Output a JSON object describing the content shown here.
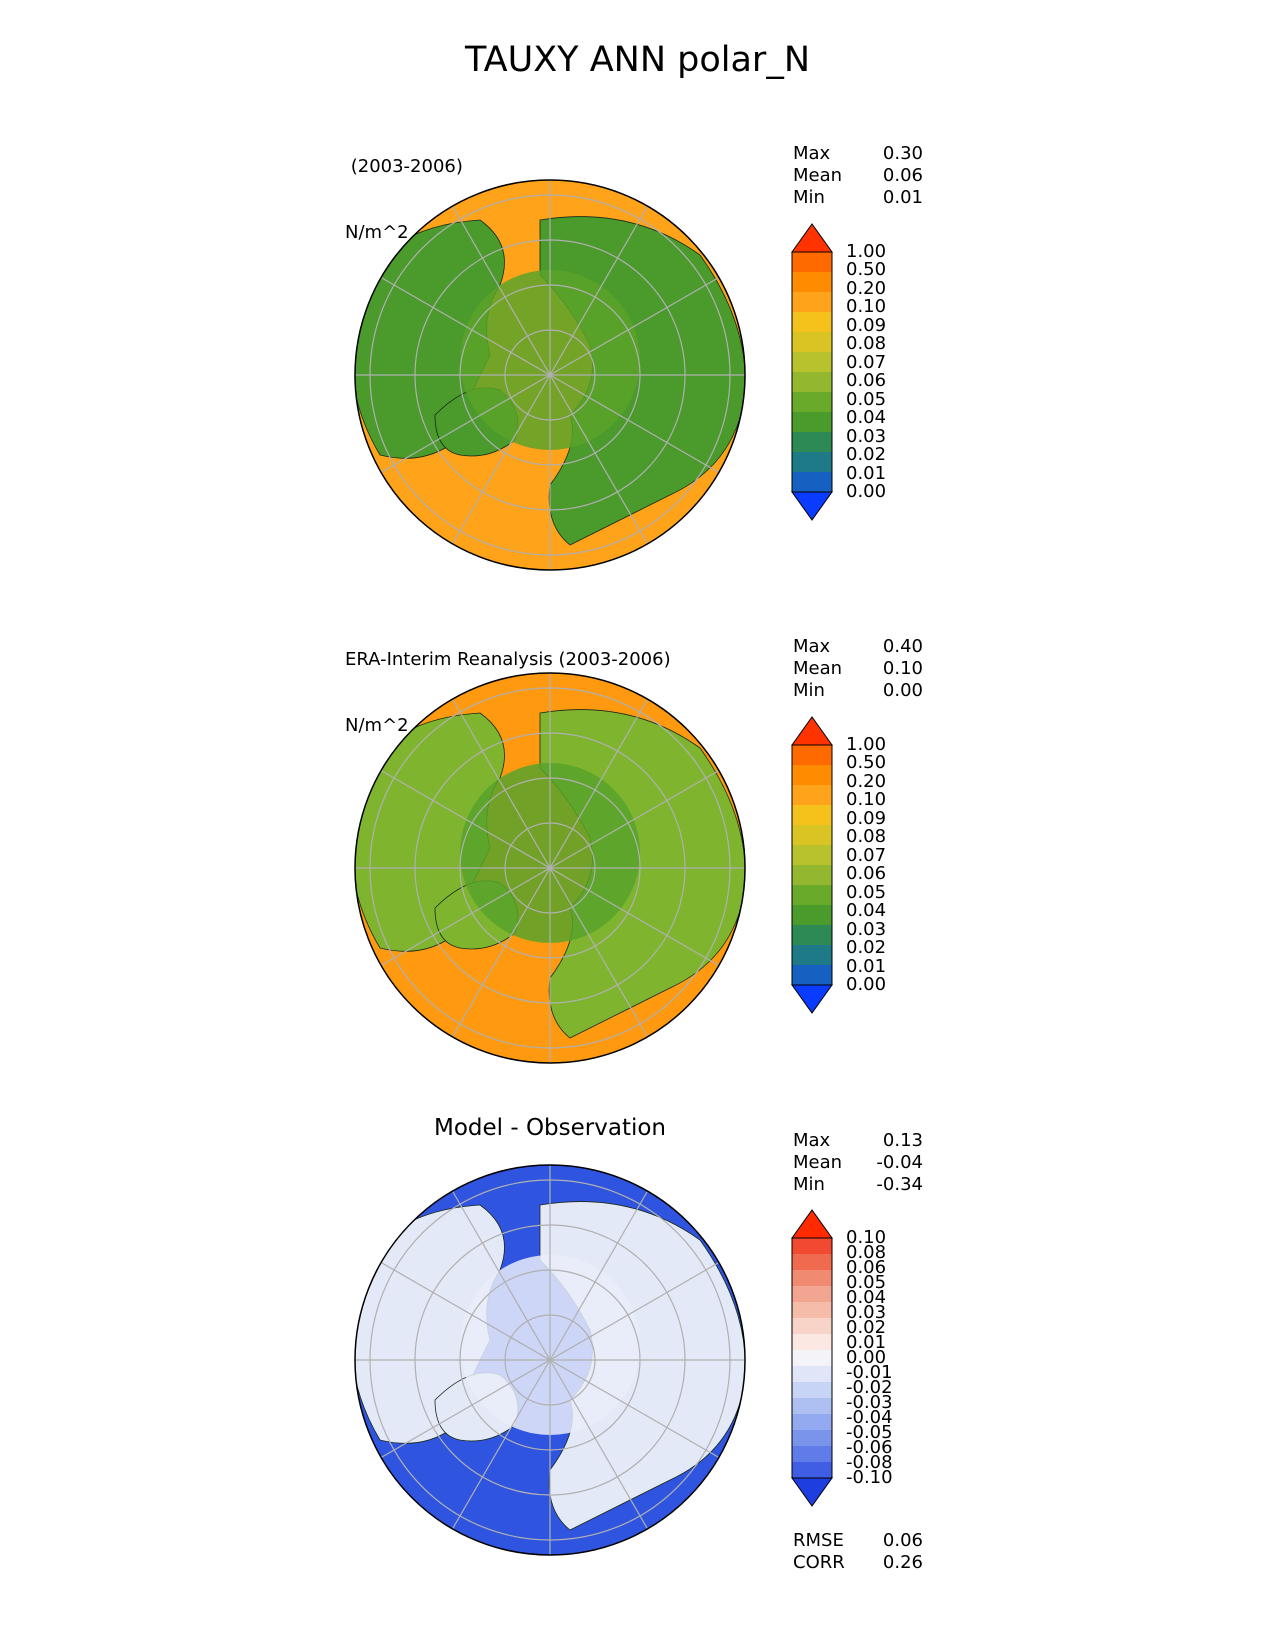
{
  "title": "TAUXY ANN polar_N",
  "panels": [
    {
      "label_line1": " (2003-2006)",
      "label_line2": "N/m^2",
      "center_title": "",
      "stats": [
        {
          "name": "Max",
          "value": "0.30"
        },
        {
          "name": "Mean",
          "value": "0.06"
        },
        {
          "name": "Min",
          "value": "0.01"
        }
      ],
      "colorbar_ticks": [
        "1.00",
        "0.50",
        "0.20",
        "0.10",
        "0.09",
        "0.08",
        "0.07",
        "0.06",
        "0.05",
        "0.04",
        "0.03",
        "0.02",
        "0.01",
        "0.00"
      ],
      "colors": [
        "#ff3300",
        "#ff6a00",
        "#ff8c00",
        "#ffa31a",
        "#f5c21b",
        "#d9c424",
        "#b8c22c",
        "#93b830",
        "#6aaa2a",
        "#4a9a2c",
        "#2e8a55",
        "#1f7a88",
        "#1560c0",
        "#0a3cff"
      ],
      "ocean_color": "#ffa31a",
      "land_color": "#4a9a2c",
      "arctic_color": "#5aa32a"
    },
    {
      "label_line1": "ERA-Interim Reanalysis (2003-2006)",
      "label_line2": "N/m^2",
      "center_title": "",
      "stats": [
        {
          "name": "Max",
          "value": "0.40"
        },
        {
          "name": "Mean",
          "value": "0.10"
        },
        {
          "name": "Min",
          "value": "0.00"
        }
      ],
      "colorbar_ticks": [
        "1.00",
        "0.50",
        "0.20",
        "0.10",
        "0.09",
        "0.08",
        "0.07",
        "0.06",
        "0.05",
        "0.04",
        "0.03",
        "0.02",
        "0.01",
        "0.00"
      ],
      "colors": [
        "#ff3300",
        "#ff6a00",
        "#ff8c00",
        "#ffa31a",
        "#f5c21b",
        "#d9c424",
        "#b8c22c",
        "#93b830",
        "#6aaa2a",
        "#4a9a2c",
        "#2e8a55",
        "#1f7a88",
        "#1560c0",
        "#0a3cff"
      ],
      "ocean_color": "#ff9a10",
      "land_color": "#7fb52e",
      "arctic_color": "#58a22a"
    },
    {
      "label_line1": "",
      "label_line2": "",
      "center_title": "Model - Observation",
      "stats": [
        {
          "name": "Max",
          "value": "0.13"
        },
        {
          "name": "Mean",
          "value": "-0.04"
        },
        {
          "name": "Min",
          "value": "-0.34"
        }
      ],
      "colorbar_ticks": [
        "0.10",
        "0.08",
        "0.06",
        "0.05",
        "0.04",
        "0.03",
        "0.02",
        "0.01",
        "0.00",
        "-0.01",
        "-0.02",
        "-0.03",
        "-0.04",
        "-0.05",
        "-0.06",
        "-0.08",
        "-0.10"
      ],
      "colors": [
        "#ff2a00",
        "#f24a30",
        "#f06a50",
        "#f08a70",
        "#f2a590",
        "#f5bcaa",
        "#f8d4c8",
        "#fbe8e2",
        "#f3f3f8",
        "#e0e6f8",
        "#c8d4f5",
        "#aebff2",
        "#94aaf0",
        "#7a94ec",
        "#5f7ce8",
        "#3f5ee4",
        "#1f3ee0"
      ],
      "ocean_color": "#2f55e0",
      "land_color": "#e4e9f8",
      "arctic_color": "#e9edf9"
    }
  ],
  "footer": {
    "rmse_label": "RMSE",
    "rmse_value": "0.06",
    "corr_label": "CORR",
    "corr_value": "0.26"
  }
}
